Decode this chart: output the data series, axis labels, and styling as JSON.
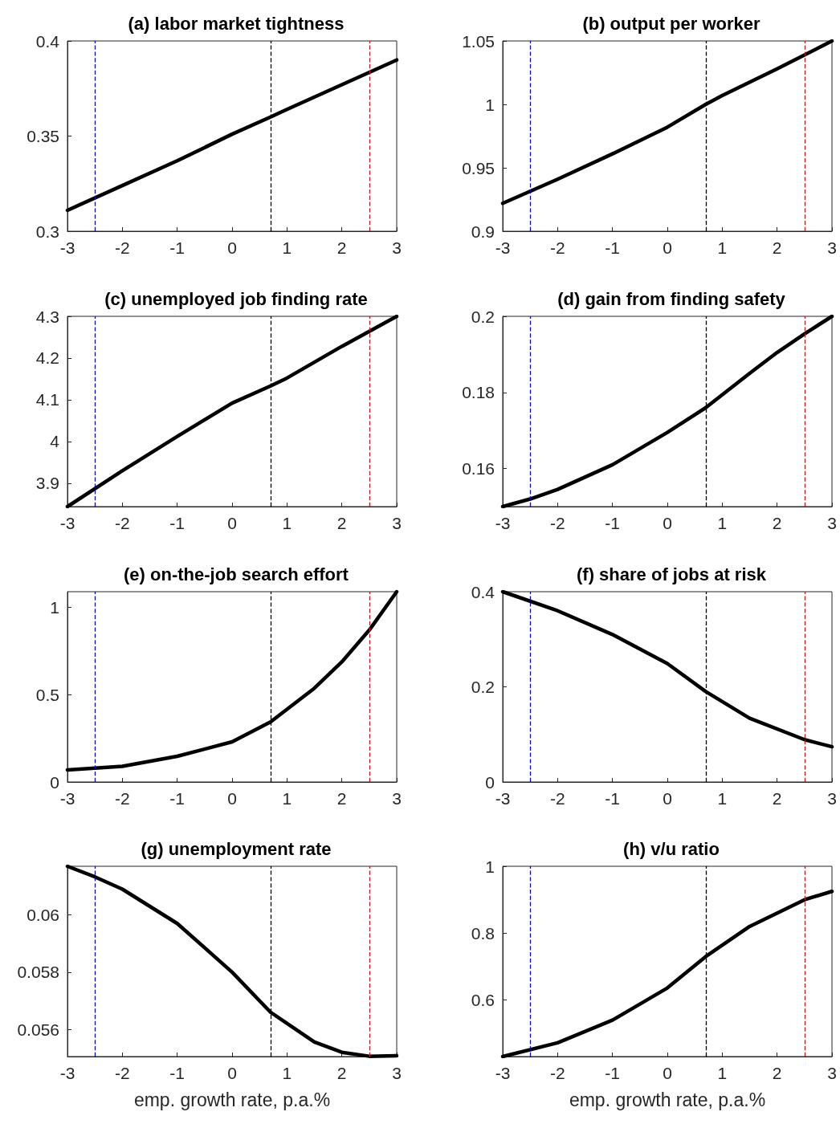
{
  "chart_data": [
    {
      "type": "line",
      "title": "(a) labor market tightness",
      "x": [
        -3,
        -2,
        -1,
        0,
        0.7,
        1,
        2,
        3
      ],
      "series": [
        {
          "color": "#000000",
          "values": [
            0.311,
            0.324,
            0.337,
            0.351,
            0.36,
            0.364,
            0.377,
            0.39
          ]
        }
      ],
      "xlim": [
        -3,
        3
      ],
      "xticks": [
        -3,
        -2,
        -1,
        0,
        1,
        2,
        3
      ],
      "ylim": [
        0.3,
        0.4
      ],
      "yticks": [
        0.3,
        0.35,
        0.4
      ],
      "line_style": "solid",
      "grid": false,
      "ref_lines": [
        {
          "axis": "x",
          "value": -2.5,
          "color": "#0000ff",
          "line_style": "dashed"
        },
        {
          "axis": "x",
          "value": 0.7,
          "color": "#000000",
          "line_style": "dashed"
        },
        {
          "axis": "x",
          "value": 2.5,
          "color": "#ff0000",
          "line_style": "dashed"
        }
      ]
    },
    {
      "type": "line",
      "title": "(b) output per worker",
      "x": [
        -3,
        -2,
        -1,
        0,
        0.7,
        1,
        2,
        3
      ],
      "series": [
        {
          "color": "#000000",
          "values": [
            0.922,
            0.941,
            0.961,
            0.982,
            1.0,
            1.007,
            1.028,
            1.05
          ]
        }
      ],
      "xlim": [
        -3,
        3
      ],
      "xticks": [
        -3,
        -2,
        -1,
        0,
        1,
        2,
        3
      ],
      "ylim": [
        0.9,
        1.05
      ],
      "yticks": [
        0.9,
        0.95,
        1,
        1.05
      ],
      "line_style": "solid",
      "grid": false,
      "ref_lines": [
        {
          "axis": "x",
          "value": -2.5,
          "color": "#0000ff",
          "line_style": "dashed"
        },
        {
          "axis": "x",
          "value": 0.7,
          "color": "#000000",
          "line_style": "dashed"
        },
        {
          "axis": "x",
          "value": 2.5,
          "color": "#ff0000",
          "line_style": "dashed"
        }
      ]
    },
    {
      "type": "line",
      "title": "(c) unemployed job finding rate",
      "x": [
        -3,
        -2,
        -1,
        0,
        0.7,
        1,
        2,
        3
      ],
      "series": [
        {
          "color": "#000000",
          "values": [
            3.844,
            3.93,
            4.012,
            4.092,
            4.133,
            4.152,
            4.228,
            4.3
          ]
        }
      ],
      "xlim": [
        -3,
        3
      ],
      "xticks": [
        -3,
        -2,
        -1,
        0,
        1,
        2,
        3
      ],
      "ylim": [
        3.844,
        4.3
      ],
      "yticks": [
        3.9,
        4,
        4.1,
        4.2,
        4.3
      ],
      "line_style": "solid",
      "grid": false,
      "ref_lines": [
        {
          "axis": "x",
          "value": -2.5,
          "color": "#0000ff",
          "line_style": "dashed"
        },
        {
          "axis": "x",
          "value": 0.7,
          "color": "#000000",
          "line_style": "dashed"
        },
        {
          "axis": "x",
          "value": 2.5,
          "color": "#ff0000",
          "line_style": "dashed"
        }
      ]
    },
    {
      "type": "line",
      "title": "(d) gain from finding safety",
      "x": [
        -3,
        -2.5,
        -2,
        -1,
        0,
        0.7,
        1.5,
        2,
        2.5,
        3
      ],
      "series": [
        {
          "color": "#000000",
          "values": [
            0.15,
            0.152,
            0.1545,
            0.161,
            0.1695,
            0.176,
            0.185,
            0.1905,
            0.1954,
            0.2
          ]
        }
      ],
      "xlim": [
        -3,
        3
      ],
      "xticks": [
        -3,
        -2,
        -1,
        0,
        1,
        2,
        3
      ],
      "ylim": [
        0.15,
        0.2
      ],
      "yticks": [
        0.16,
        0.18,
        0.2
      ],
      "line_style": "solid",
      "grid": false,
      "ref_lines": [
        {
          "axis": "x",
          "value": -2.5,
          "color": "#0000ff",
          "line_style": "dashed"
        },
        {
          "axis": "x",
          "value": 0.7,
          "color": "#000000",
          "line_style": "dashed"
        },
        {
          "axis": "x",
          "value": 2.5,
          "color": "#ff0000",
          "line_style": "dashed"
        }
      ]
    },
    {
      "type": "line",
      "title": "(e) on-the-job search effort",
      "x": [
        -3,
        -2,
        -1,
        0,
        0.7,
        1.5,
        2,
        2.5,
        3
      ],
      "series": [
        {
          "color": "#000000",
          "values": [
            0.069,
            0.09,
            0.147,
            0.23,
            0.344,
            0.537,
            0.688,
            0.87,
            1.09
          ]
        }
      ],
      "xlim": [
        -3,
        3
      ],
      "xticks": [
        -3,
        -2,
        -1,
        0,
        1,
        2,
        3
      ],
      "ylim": [
        0,
        1.09
      ],
      "yticks": [
        0,
        0.5,
        1
      ],
      "line_style": "solid",
      "grid": false,
      "ref_lines": [
        {
          "axis": "x",
          "value": -2.5,
          "color": "#0000ff",
          "line_style": "dashed"
        },
        {
          "axis": "x",
          "value": 0.7,
          "color": "#000000",
          "line_style": "dashed"
        },
        {
          "axis": "x",
          "value": 2.5,
          "color": "#ff0000",
          "line_style": "dashed"
        }
      ]
    },
    {
      "type": "line",
      "title": "(f) share of jobs at risk",
      "x": [
        -3,
        -2,
        -1,
        0,
        0.7,
        1.5,
        2.5,
        3
      ],
      "series": [
        {
          "color": "#000000",
          "values": [
            0.4,
            0.36,
            0.31,
            0.249,
            0.19,
            0.134,
            0.089,
            0.074
          ]
        }
      ],
      "xlim": [
        -3,
        3
      ],
      "xticks": [
        -3,
        -2,
        -1,
        0,
        1,
        2,
        3
      ],
      "ylim": [
        0,
        0.4
      ],
      "yticks": [
        0,
        0.2,
        0.4
      ],
      "line_style": "solid",
      "grid": false,
      "ref_lines": [
        {
          "axis": "x",
          "value": -2.5,
          "color": "#0000ff",
          "line_style": "dashed"
        },
        {
          "axis": "x",
          "value": 0.7,
          "color": "#000000",
          "line_style": "dashed"
        },
        {
          "axis": "x",
          "value": 2.5,
          "color": "#ff0000",
          "line_style": "dashed"
        }
      ]
    },
    {
      "type": "line",
      "title": "(g) unemployment rate",
      "xlabel": "emp. growth rate, p.a.%",
      "x": [
        -3,
        -2.5,
        -2,
        -1,
        0,
        0.7,
        1.5,
        2,
        2.5,
        3
      ],
      "series": [
        {
          "color": "#000000",
          "values": [
            0.0617,
            0.06133,
            0.0609,
            0.0597,
            0.058,
            0.0566,
            0.05556,
            0.0552,
            0.05506,
            0.05508
          ]
        }
      ],
      "xlim": [
        -3,
        3
      ],
      "xticks": [
        -3,
        -2,
        -1,
        0,
        1,
        2,
        3
      ],
      "ylim": [
        0.05505,
        0.0617
      ],
      "yticks": [
        0.056,
        0.058,
        0.06
      ],
      "line_style": "solid",
      "grid": false,
      "ref_lines": [
        {
          "axis": "x",
          "value": -2.5,
          "color": "#0000ff",
          "line_style": "dashed"
        },
        {
          "axis": "x",
          "value": 0.7,
          "color": "#000000",
          "line_style": "dashed"
        },
        {
          "axis": "x",
          "value": 2.5,
          "color": "#ff0000",
          "line_style": "dashed"
        }
      ]
    },
    {
      "type": "line",
      "title": "(h) v/u ratio",
      "xlabel": "emp. growth rate, p.a.%",
      "x": [
        -3,
        -2,
        -1,
        0,
        0.7,
        1.5,
        2.5,
        3
      ],
      "series": [
        {
          "color": "#000000",
          "values": [
            0.431,
            0.472,
            0.54,
            0.636,
            0.73,
            0.82,
            0.9,
            0.925
          ]
        }
      ],
      "xlim": [
        -3,
        3
      ],
      "xticks": [
        -3,
        -2,
        -1,
        0,
        1,
        2,
        3
      ],
      "ylim": [
        0.431,
        1
      ],
      "yticks": [
        0.6,
        0.8,
        1
      ],
      "line_style": "solid",
      "grid": false,
      "ref_lines": [
        {
          "axis": "x",
          "value": -2.5,
          "color": "#0000ff",
          "line_style": "dashed"
        },
        {
          "axis": "x",
          "value": 0.7,
          "color": "#000000",
          "line_style": "dashed"
        },
        {
          "axis": "x",
          "value": 2.5,
          "color": "#ff0000",
          "line_style": "dashed"
        }
      ]
    }
  ]
}
